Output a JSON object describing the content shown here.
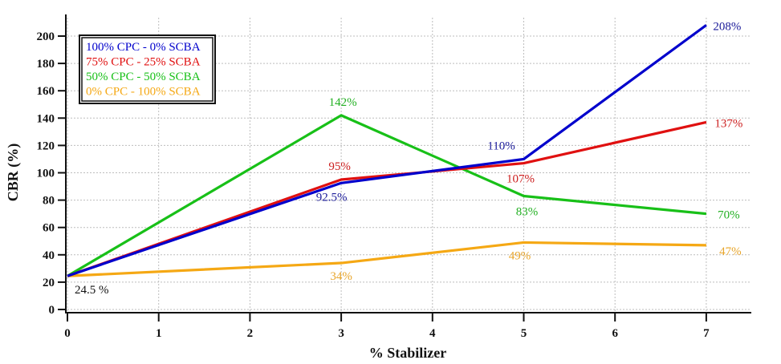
{
  "chart_data": {
    "type": "line",
    "title": "",
    "xlabel": "% Stabilizer",
    "ylabel": "CBR (%)",
    "x": [
      0,
      3,
      5,
      7
    ],
    "xlim": [
      0,
      7
    ],
    "ylim": [
      0,
      210
    ],
    "xticks": [
      0,
      1,
      2,
      3,
      4,
      5,
      6,
      7
    ],
    "yticks": [
      0,
      20,
      40,
      60,
      80,
      100,
      120,
      140,
      160,
      180,
      200
    ],
    "grid": true,
    "legend_position": "upper left",
    "series": [
      {
        "name": "100% CPC - 0% SCBA",
        "color": "#0000cc",
        "values": [
          24.5,
          92.5,
          110,
          208
        ],
        "labels": [
          null,
          "92.5%",
          "110%",
          "208%"
        ]
      },
      {
        "name": "75% CPC - 25% SCBA",
        "color": "#e01010",
        "values": [
          24.5,
          95,
          107,
          137
        ],
        "labels": [
          null,
          "95%",
          "107%",
          "137%"
        ]
      },
      {
        "name": "50% CPC - 50% SCBA",
        "color": "#18c018",
        "values": [
          24.5,
          142,
          83,
          70
        ],
        "labels": [
          null,
          "142%",
          "83%",
          "70%"
        ]
      },
      {
        "name": "0% CPC - 100% SCBA",
        "color": "#f5a814",
        "values": [
          24.5,
          34,
          49,
          47
        ],
        "labels": [
          null,
          "34%",
          "49%",
          "47%"
        ]
      }
    ],
    "annotations": [
      {
        "text": "24.5 %",
        "x": 0,
        "y": 24.5
      }
    ]
  },
  "legend": {
    "items": [
      {
        "label": "100% CPC - 0% SCBA",
        "color": "#0000cc"
      },
      {
        "label": "75% CPC - 25% SCBA",
        "color": "#e01010"
      },
      {
        "label": "50% CPC - 50% SCBA",
        "color": "#18c018"
      },
      {
        "label": "0% CPC - 100% SCBA",
        "color": "#f5a814"
      }
    ]
  }
}
